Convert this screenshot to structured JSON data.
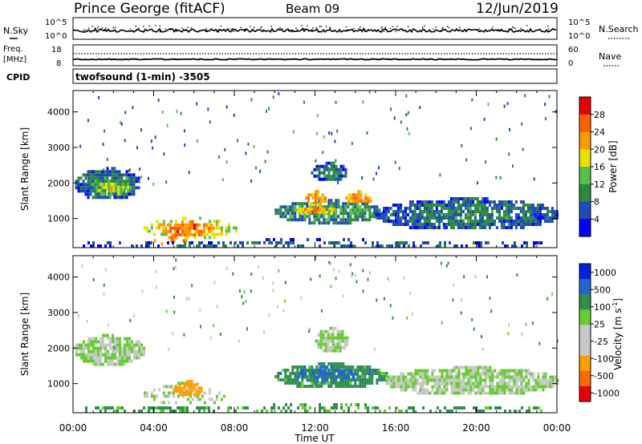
{
  "header": {
    "station": "Prince George (fitACF)",
    "beam": "Beam 09",
    "date": "12/Jun/2019"
  },
  "panels": {
    "nsky": {
      "label": "N.Sky",
      "right_label": "N.Search",
      "ticks_left": [
        "10^5",
        "10^0"
      ],
      "ticks_right": [
        "10^5",
        "10^0"
      ]
    },
    "freq": {
      "label_line1": "Freq.",
      "label_line2": "[MHz]",
      "ticks_left": [
        "18",
        "8"
      ],
      "ticks_right": [
        "60",
        "0"
      ],
      "right_label": "Nave",
      "cpid_label": "CPID",
      "cpid_text": "twofsound (1-min) -3505"
    }
  },
  "colorbars": {
    "power": {
      "label": "Power [dB]",
      "tick_labels": [
        "28",
        "24",
        "20",
        "16",
        "12",
        "8",
        "4"
      ],
      "colors": [
        "#0000ff",
        "#1e4bb4",
        "#2b8a3e",
        "#55c04a",
        "#e8e000",
        "#ff9900",
        "#ff6000",
        "#e80000"
      ]
    },
    "velocity": {
      "label_main": "Velocity [m s",
      "label_sup": "-1",
      "label_end": "]",
      "tick_labels": [
        "1000",
        "500",
        "100",
        "25",
        "-25",
        "-100",
        "-500",
        "-1000"
      ],
      "colors": [
        "#e80000",
        "#ff6a00",
        "#ff9e00",
        "#c8c8c8",
        "#c8c8c8",
        "#66cc33",
        "#2f8f4e",
        "#2266cc",
        "#0022dd"
      ]
    }
  },
  "chart_data": [
    {
      "type": "heatmap",
      "name": "power",
      "xlabel": "Time UT",
      "ylabel": "Slant Range [km]",
      "xlim": [
        0,
        24
      ],
      "ylim": [
        180,
        4600
      ],
      "x_tick_labels": [
        "00:00",
        "04:00",
        "08:00",
        "12:00",
        "16:00",
        "20:00",
        "00:00"
      ],
      "y_tick_labels": [
        "1000",
        "2000",
        "3000",
        "4000"
      ],
      "regions": [
        {
          "x": [
            0.1,
            3.3
          ],
          "y": [
            1550,
            2450
          ],
          "value": 10
        },
        {
          "x": [
            1.0,
            2.8
          ],
          "y": [
            1700,
            2100
          ],
          "value": 17
        },
        {
          "x": [
            3.5,
            8.1
          ],
          "y": [
            450,
            1050
          ],
          "value": 20
        },
        {
          "x": [
            4.3,
            7.0
          ],
          "y": [
            550,
            950
          ],
          "value": 26
        },
        {
          "x": [
            4.0,
            5.6
          ],
          "y": [
            300,
            600
          ],
          "value": 24
        },
        {
          "x": [
            10.0,
            15.3
          ],
          "y": [
            900,
            1550
          ],
          "value": 12
        },
        {
          "x": [
            11.0,
            13.0
          ],
          "y": [
            1150,
            1400
          ],
          "value": 22
        },
        {
          "x": [
            11.5,
            12.5
          ],
          "y": [
            1400,
            1800
          ],
          "value": 24
        },
        {
          "x": [
            11.8,
            13.6
          ],
          "y": [
            2100,
            2600
          ],
          "value": 10
        },
        {
          "x": [
            13.5,
            14.8
          ],
          "y": [
            1450,
            1800
          ],
          "value": 24
        },
        {
          "x": [
            15.0,
            24.0
          ],
          "y": [
            700,
            1600
          ],
          "value": 9
        },
        {
          "x": [
            0.0,
            24.0
          ],
          "y": [
            180,
            450
          ],
          "value": 8
        }
      ]
    },
    {
      "type": "heatmap",
      "name": "velocity",
      "xlabel": "Time UT",
      "ylabel": "Slant Range [km]",
      "xlim": [
        0,
        24
      ],
      "ylim": [
        180,
        4600
      ],
      "x_tick_labels": [
        "00:00",
        "04:00",
        "08:00",
        "12:00",
        "16:00",
        "20:00",
        "00:00"
      ],
      "y_tick_labels": [
        "1000",
        "2000",
        "3000",
        "4000"
      ],
      "regions": [
        {
          "x": [
            0.0,
            3.5
          ],
          "y": [
            1550,
            2400
          ],
          "value": 0
        },
        {
          "x": [
            3.5,
            7.8
          ],
          "y": [
            450,
            1050
          ],
          "value": 0
        },
        {
          "x": [
            5.0,
            6.4
          ],
          "y": [
            650,
            1100
          ],
          "value": -300
        },
        {
          "x": [
            10.0,
            15.5
          ],
          "y": [
            900,
            1600
          ],
          "value": 60
        },
        {
          "x": [
            11.0,
            14.0
          ],
          "y": [
            1100,
            1500
          ],
          "value": 150
        },
        {
          "x": [
            12.0,
            13.6
          ],
          "y": [
            1900,
            2600
          ],
          "value": 0
        },
        {
          "x": [
            15.5,
            24.0
          ],
          "y": [
            700,
            1500
          ],
          "value": 0
        },
        {
          "x": [
            0.0,
            24.0
          ],
          "y": [
            180,
            450
          ],
          "value": 40
        }
      ]
    }
  ]
}
